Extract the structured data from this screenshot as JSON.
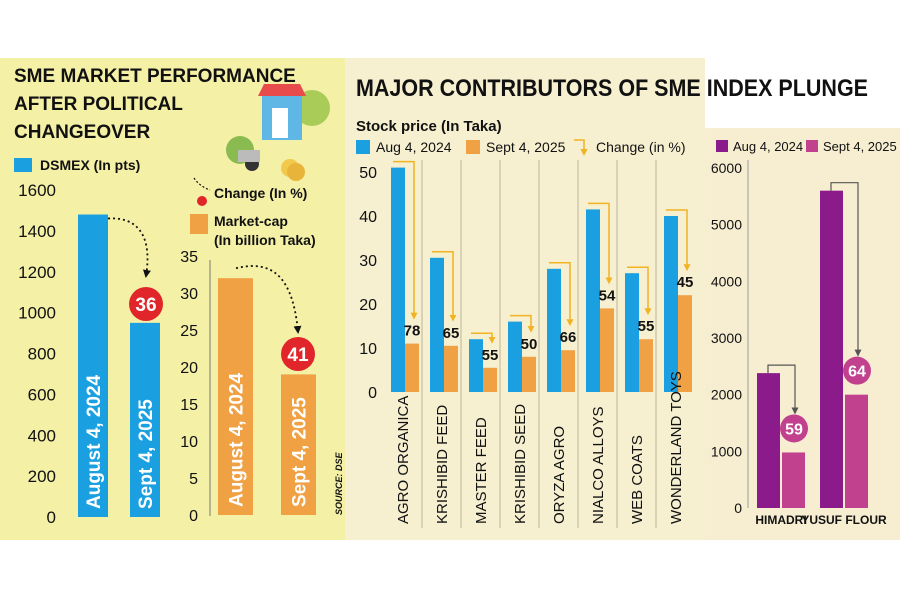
{
  "left_panel": {
    "title_lines": [
      "SME MARKET PERFORMANCE",
      "AFTER POLITICAL",
      "CHANGEOVER"
    ],
    "legend_dsmex": "DSMEX (In pts)",
    "legend_change": "Change (In %)",
    "legend_mcap_line1": "Market-cap",
    "legend_mcap_line2": "(In billion Taka)",
    "source": "SOURCE: DSE"
  },
  "middle_panel": {
    "title": "MAJOR CONTRIBUTORS OF SME INDEX PLUNGE",
    "subtitle": "Stock price (In Taka)",
    "legend_a": "Aug 4, 2024",
    "legend_b": "Sept 4, 2025",
    "legend_change": "Change (in %)"
  },
  "right_panel": {
    "legend_a": "Aug 4, 2024",
    "legend_b": "Sept 4, 2025"
  },
  "colors": {
    "blue": "#1aa0e0",
    "orange": "#f0a144",
    "purple": "#8b1a8a",
    "pink": "#c2418f",
    "red": "#e0262b",
    "bg_left": "#f4f0a6",
    "bg_mid": "#f6f0d0",
    "bg_right": "#f7eed2",
    "arrow_gold": "#f2b322"
  },
  "chart_data": [
    {
      "id": "dsmex",
      "type": "bar",
      "title": "DSMEX (In pts)",
      "categories": [
        "August 4, 2024",
        "Sept 4, 2025"
      ],
      "values": [
        1480,
        950
      ],
      "change_pct": 36,
      "ylim": [
        0,
        1600
      ],
      "yticks": [
        0,
        200,
        400,
        600,
        800,
        1000,
        1200,
        1400,
        1600
      ]
    },
    {
      "id": "mcap",
      "type": "bar",
      "title": "Market-cap (In billion Taka)",
      "categories": [
        "August 4, 2024",
        "Sept 4, 2025"
      ],
      "values": [
        32,
        19
      ],
      "change_pct": 41,
      "ylim": [
        0,
        35
      ],
      "yticks": [
        0,
        5,
        10,
        15,
        20,
        25,
        30,
        35
      ]
    },
    {
      "id": "contributors",
      "type": "bar",
      "title": "Stock price (In Taka)",
      "categories": [
        "AGRO ORGANICA",
        "KRISHIBID FEED",
        "MASTER FEED",
        "KRISHIBID SEED",
        "ORYZA AGRO",
        "NIALCO ALLOYS",
        "WEB COATS",
        "WONDERLAND TOYS"
      ],
      "series": [
        {
          "name": "Aug 4, 2024",
          "values": [
            51,
            30.5,
            12,
            16,
            28,
            41.5,
            27,
            40
          ]
        },
        {
          "name": "Sept 4, 2025",
          "values": [
            11,
            10.5,
            5.5,
            8,
            9.5,
            19,
            12,
            22
          ]
        }
      ],
      "change_pct": [
        78,
        65,
        55,
        50,
        66,
        54,
        55,
        45
      ],
      "ylim": [
        0,
        50
      ],
      "yticks": [
        0,
        10,
        20,
        30,
        40,
        50
      ]
    },
    {
      "id": "large_caps",
      "type": "bar",
      "title": "",
      "categories": [
        "HIMADRI",
        "YUSUF FLOUR"
      ],
      "series": [
        {
          "name": "Aug 4, 2024",
          "values": [
            2380,
            5600
          ]
        },
        {
          "name": "Sept 4, 2025",
          "values": [
            980,
            2000
          ]
        }
      ],
      "change_pct": [
        59,
        64
      ],
      "ylim": [
        0,
        6000
      ],
      "yticks": [
        0,
        1000,
        2000,
        3000,
        4000,
        5000,
        6000
      ]
    }
  ]
}
